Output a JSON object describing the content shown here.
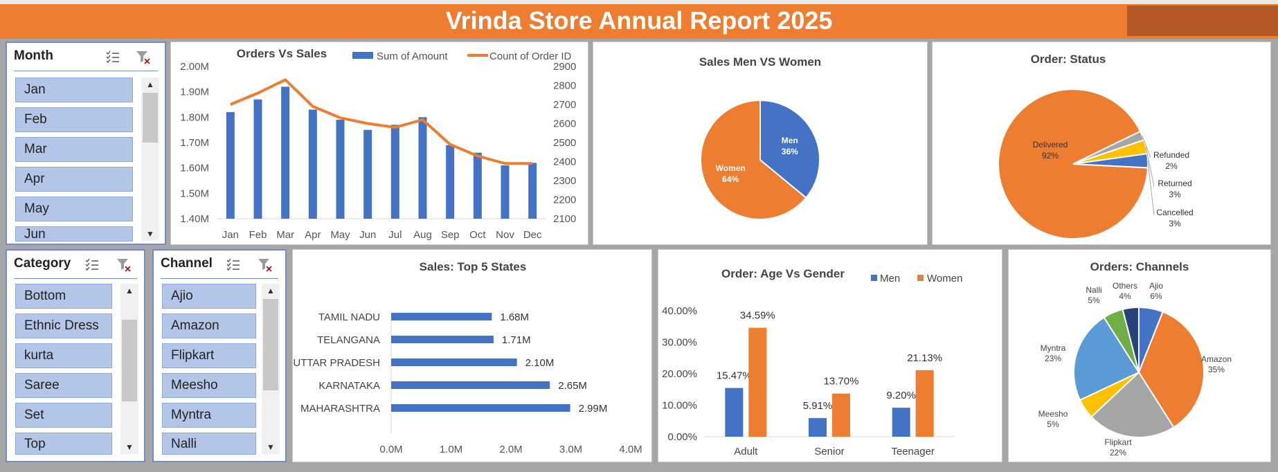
{
  "header": {
    "title": "Vrinda Store Annual Report 2025"
  },
  "slicers": {
    "month": {
      "title": "Month",
      "items": [
        "Jan",
        "Feb",
        "Mar",
        "Apr",
        "May",
        "Jun"
      ]
    },
    "category": {
      "title": "Category",
      "items": [
        "Bottom",
        "Ethnic Dress",
        "kurta",
        "Saree",
        "Set",
        "Top"
      ]
    },
    "channel": {
      "title": "Channel",
      "items": [
        "Ajio",
        "Amazon",
        "Flipkart",
        "Meesho",
        "Myntra",
        "Nalli"
      ]
    }
  },
  "colors": {
    "blue": "#4472c4",
    "orange": "#ed7d31",
    "gray": "#a5a5a5",
    "yellow": "#ffc000",
    "lightblue": "#5b9bd5",
    "green": "#70ad47",
    "navy": "#264478"
  },
  "chart_data": [
    {
      "id": "orders_vs_sales",
      "type": "bar",
      "title": "Orders Vs Sales",
      "categories": [
        "Jan",
        "Feb",
        "Mar",
        "Apr",
        "May",
        "Jun",
        "Jul",
        "Aug",
        "Sep",
        "Oct",
        "Nov",
        "Dec"
      ],
      "series": [
        {
          "name": "Sum of Amount",
          "axis": "left",
          "values": [
            1.82,
            1.87,
            1.92,
            1.83,
            1.79,
            1.75,
            1.77,
            1.8,
            1.69,
            1.66,
            1.61,
            1.62
          ]
        },
        {
          "name": "Count of Order ID",
          "axis": "right",
          "values": [
            2700,
            2760,
            2830,
            2690,
            2630,
            2600,
            2580,
            2620,
            2490,
            2430,
            2390,
            2390
          ]
        }
      ],
      "y_left_ticks": [
        "2.00M",
        "1.90M",
        "1.80M",
        "1.70M",
        "1.60M",
        "1.50M",
        "1.40M"
      ],
      "y_right_ticks": [
        "2900",
        "2800",
        "2700",
        "2600",
        "2500",
        "2400",
        "2300",
        "2200",
        "2100"
      ],
      "ylim_left": [
        1.4,
        2.0
      ],
      "ylim_right": [
        2100,
        2900
      ],
      "legend": "top"
    },
    {
      "id": "men_women",
      "type": "pie",
      "title": "Sales Men VS Women",
      "slices": [
        {
          "label": "Men",
          "pct": "36%",
          "value": 36
        },
        {
          "label": "Women",
          "pct": "64%",
          "value": 64
        }
      ]
    },
    {
      "id": "order_status",
      "type": "pie",
      "title": "Order: Status",
      "slices": [
        {
          "label": "Delivered",
          "pct": "92%",
          "value": 92
        },
        {
          "label": "Refunded",
          "pct": "2%",
          "value": 2
        },
        {
          "label": "Returned",
          "pct": "3%",
          "value": 3
        },
        {
          "label": "Cancelled",
          "pct": "3%",
          "value": 3
        }
      ]
    },
    {
      "id": "top_states",
      "type": "bar",
      "title": "Sales: Top 5 States",
      "categories": [
        "TAMIL NADU",
        "TELANGANA",
        "UTTAR PRADESH",
        "KARNATAKA",
        "MAHARASHTRA"
      ],
      "values": [
        1.68,
        1.71,
        2.1,
        2.65,
        2.99
      ],
      "value_labels": [
        "1.68M",
        "1.71M",
        "2.10M",
        "2.65M",
        "2.99M"
      ],
      "x_ticks": [
        "0.0M",
        "1.0M",
        "2.0M",
        "3.0M",
        "4.0M"
      ],
      "xlim": [
        0,
        4
      ]
    },
    {
      "id": "age_gender",
      "type": "bar",
      "title": "Order: Age Vs Gender",
      "categories": [
        "Adult",
        "Senior",
        "Teenager"
      ],
      "series": [
        {
          "name": "Men",
          "values": [
            15.47,
            5.91,
            9.2
          ],
          "labels": [
            "15.47%",
            "5.91%",
            "9.20%"
          ]
        },
        {
          "name": "Women",
          "values": [
            34.59,
            13.7,
            21.13
          ],
          "labels": [
            "34.59%",
            "13.70%",
            "21.13%"
          ]
        }
      ],
      "y_ticks": [
        "40.00%",
        "30.00%",
        "20.00%",
        "10.00%",
        "0.00%"
      ],
      "ylim": [
        0,
        40
      ],
      "legend": "top-right"
    },
    {
      "id": "channels",
      "type": "pie",
      "title": "Orders: Channels",
      "slices": [
        {
          "label": "Ajio",
          "pct": "6%",
          "value": 6
        },
        {
          "label": "Amazon",
          "pct": "35%",
          "value": 35
        },
        {
          "label": "Flipkart",
          "pct": "22%",
          "value": 22
        },
        {
          "label": "Meesho",
          "pct": "5%",
          "value": 5
        },
        {
          "label": "Myntra",
          "pct": "23%",
          "value": 23
        },
        {
          "label": "Nalli",
          "pct": "5%",
          "value": 5
        },
        {
          "label": "Others",
          "pct": "4%",
          "value": 4
        }
      ]
    }
  ]
}
